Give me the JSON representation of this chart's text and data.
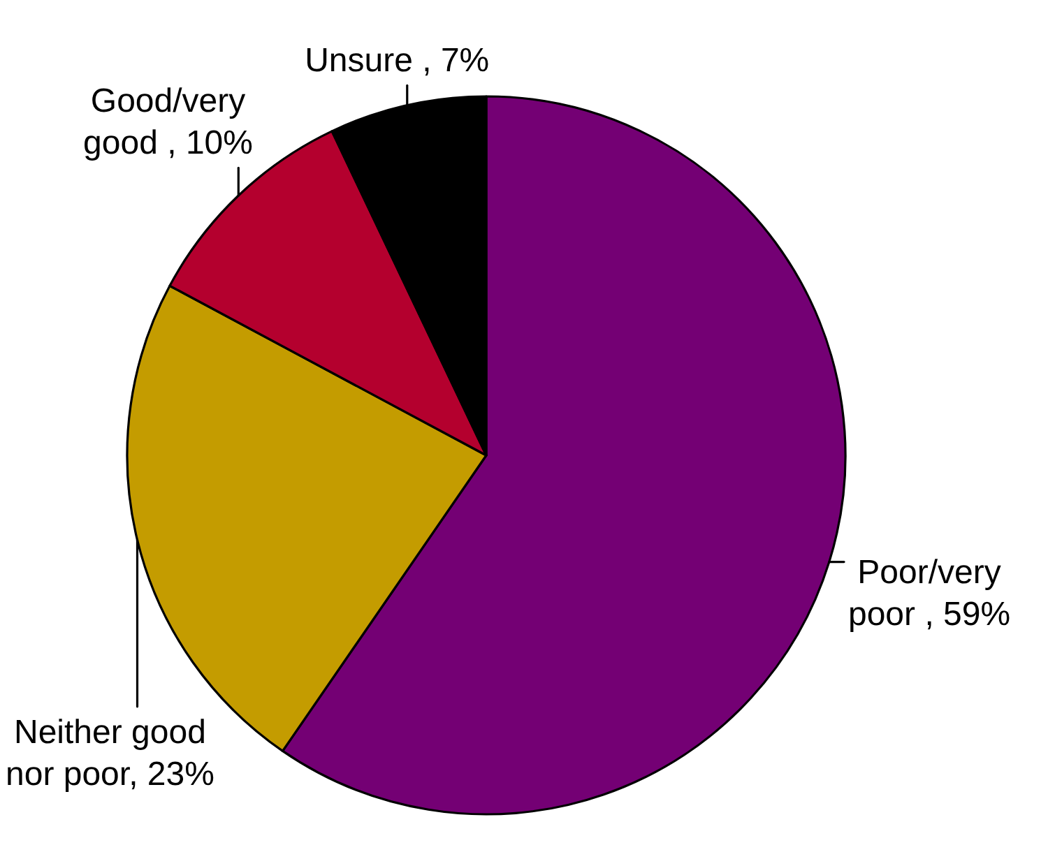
{
  "chart_data": {
    "type": "pie",
    "categories": [
      "Poor/very poor ",
      "Neither good nor poor",
      "Good/very good ",
      "Unsure "
    ],
    "values": [
      59,
      23,
      10,
      7
    ],
    "colors": [
      "#740074",
      "#c49c00",
      "#b4002e",
      "#000000"
    ],
    "value_labels": [
      "59%",
      "23%",
      "10%",
      "7%"
    ]
  }
}
